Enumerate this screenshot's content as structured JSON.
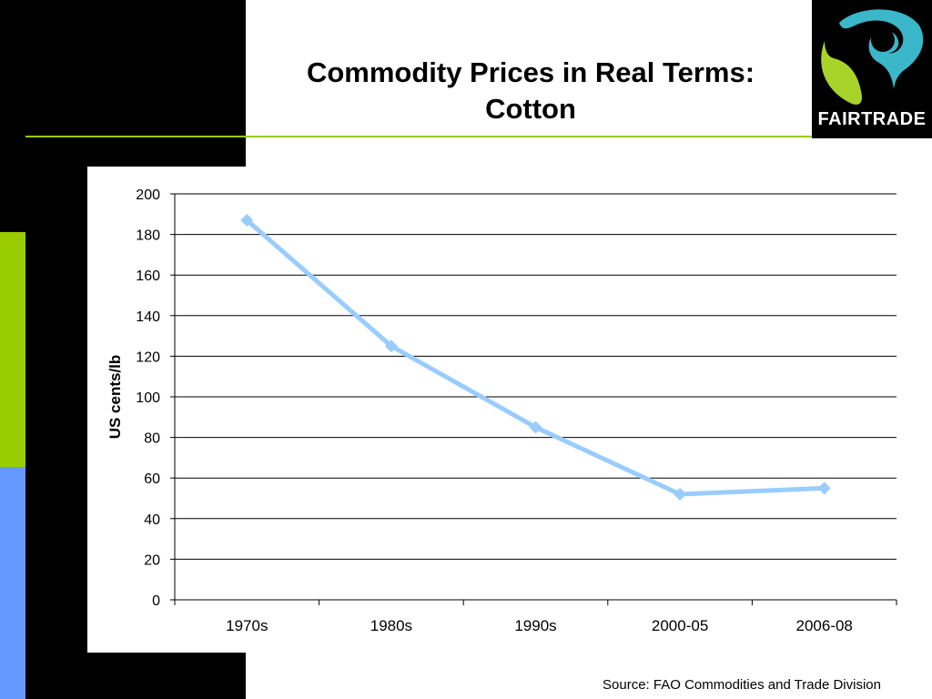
{
  "slide": {
    "title": "Commodity Prices in Real Terms: Cotton",
    "source": "Source: FAO Commodities and Trade Division",
    "logo_text": "FAIRTRADE"
  },
  "colors": {
    "black_panel": "#000000",
    "accent_green": "#99cc00",
    "accent_blue": "#6699ff",
    "rule": "#99cc00",
    "series": "#99ccff",
    "logo_teal": "#3ab7c8",
    "logo_green": "#a8d42a"
  },
  "icons": {
    "logo": "fairtrade-mark-icon"
  },
  "chart_data": {
    "type": "line",
    "title": "Commodity Prices in Real Terms: Cotton",
    "xlabel": "",
    "ylabel": "US cents/lb",
    "categories": [
      "1970s",
      "1980s",
      "1990s",
      "2000-05",
      "2006-08"
    ],
    "series": [
      {
        "values": [
          187,
          125,
          85,
          52,
          55
        ]
      }
    ],
    "ylim": [
      0,
      200
    ],
    "yticks": [
      0,
      20,
      40,
      60,
      80,
      100,
      120,
      140,
      160,
      180,
      200
    ],
    "grid": true,
    "legend": "none",
    "marker": "diamond"
  }
}
